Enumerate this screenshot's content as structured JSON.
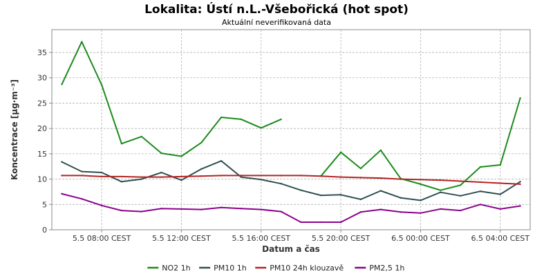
{
  "chart_data": {
    "type": "line",
    "title": "Lokalita: Ústí n.L.-Všebořická (hot spot)",
    "subtitle": "Aktuální neverifikovaná data",
    "xlabel": "Datum a čas",
    "ylabel": "Koncentrace [µg·m⁻³]",
    "ylim": [
      0,
      39.5
    ],
    "yticks": [
      0,
      5,
      10,
      15,
      20,
      25,
      30,
      35
    ],
    "xlim": [
      5.5,
      29.5
    ],
    "xticks": [
      {
        "x": 8,
        "label": "5.5 08:00 CEST"
      },
      {
        "x": 12,
        "label": "5.5 12:00 CEST"
      },
      {
        "x": 16,
        "label": "5.5 16:00 CEST"
      },
      {
        "x": 20,
        "label": "5.5 20:00 CEST"
      },
      {
        "x": 24,
        "label": "6.5 00:00 CEST"
      },
      {
        "x": 28,
        "label": "6.5 04:00 CEST"
      }
    ],
    "grid": true,
    "legend_position": "bottom",
    "x": [
      6,
      7,
      8,
      9,
      10,
      11,
      12,
      13,
      14,
      15,
      16,
      17,
      18,
      19,
      20,
      21,
      22,
      23,
      24,
      25,
      26,
      27,
      28,
      29
    ],
    "series": [
      {
        "name": "NO2 1h",
        "color": "#1a8a1a",
        "values": [
          28.7,
          37.1,
          28.6,
          17.0,
          18.4,
          15.1,
          14.5,
          17.2,
          22.2,
          21.8,
          20.1,
          21.8,
          null,
          10.6,
          15.3,
          12.1,
          15.7,
          10.1,
          9.0,
          7.8,
          8.8,
          12.4,
          12.8,
          26.0
        ]
      },
      {
        "name": "PM10 1h",
        "color": "#2f4f4f",
        "values": [
          13.4,
          11.5,
          11.3,
          9.5,
          10.0,
          11.3,
          9.8,
          12.0,
          13.6,
          10.4,
          9.9,
          9.1,
          7.8,
          6.8,
          6.9,
          6.0,
          7.7,
          6.3,
          5.8,
          7.4,
          6.7,
          7.6,
          7.0,
          9.5
        ]
      },
      {
        "name": "PM10 24h klouzavě",
        "color": "#b22222",
        "values": [
          10.7,
          10.7,
          10.5,
          10.5,
          10.4,
          10.4,
          10.5,
          10.6,
          10.7,
          10.7,
          10.7,
          10.7,
          10.7,
          10.6,
          10.4,
          10.3,
          10.2,
          10.0,
          9.9,
          9.8,
          9.6,
          9.4,
          9.2,
          9.0
        ]
      },
      {
        "name": "PM2,5 1h",
        "color": "#8b008b",
        "values": [
          7.1,
          6.1,
          4.8,
          3.8,
          3.6,
          4.2,
          4.1,
          4.0,
          4.4,
          4.2,
          4.0,
          3.6,
          1.5,
          1.5,
          1.5,
          3.5,
          4.0,
          3.5,
          3.3,
          4.1,
          3.8,
          5.0,
          4.1,
          4.7
        ]
      }
    ]
  }
}
